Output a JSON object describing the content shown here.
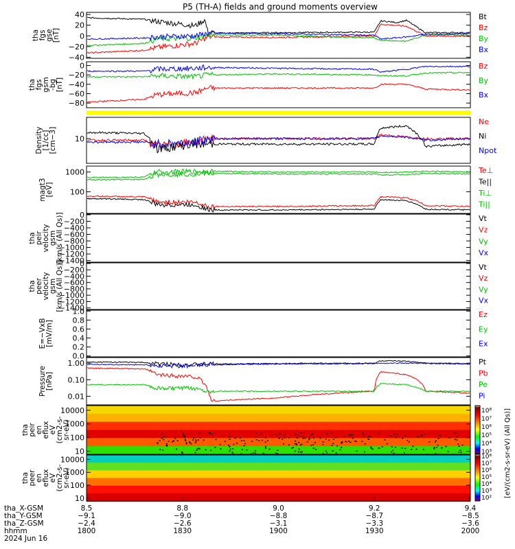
{
  "title": "P5 (TH-A) fields and ground moments overview",
  "panels": [
    {
      "id": "fgs_gse",
      "ylabel": [
        "tha",
        "fgs",
        "gse",
        "[nT]"
      ],
      "ticks": [
        "40",
        "20",
        "0",
        "−20",
        "−40"
      ],
      "tick_values": [
        40,
        20,
        0,
        -20,
        -40
      ],
      "ylim": [
        -42,
        44
      ],
      "legend": [
        {
          "text": "Bt",
          "color": "#000000"
        },
        {
          "text": "Bz",
          "color": "#ff0000"
        },
        {
          "text": "By",
          "color": "#00c000"
        },
        {
          "text": "Bx",
          "color": "#0000ff"
        }
      ]
    },
    {
      "id": "fgs_gsm",
      "ylabel": [
        "tha",
        "fgs",
        "gsm",
        "-bg",
        "[nT]"
      ],
      "ticks": [
        "0",
        "−20",
        "−40",
        "−60",
        "−80"
      ],
      "tick_values": [
        0,
        -20,
        -40,
        -60,
        -80
      ],
      "ylim": [
        -90,
        8
      ],
      "legend": [
        {
          "text": "Bz",
          "color": "#ff0000"
        },
        {
          "text": "By",
          "color": "#00c000"
        },
        {
          "text": "Bx",
          "color": "#0000ff"
        }
      ]
    },
    {
      "id": "density",
      "ylabel": [
        "Density",
        "[1/cc]",
        "[cm−3]"
      ],
      "ticks": [
        "10"
      ],
      "tick_values": [
        10
      ],
      "ylim": [
        2,
        40
      ],
      "log": true,
      "legend": [
        {
          "text": "Ne",
          "color": "#ff0000"
        },
        {
          "text": "Ni",
          "color": "#000000"
        },
        {
          "text": "Npot",
          "color": "#0000ff"
        }
      ]
    },
    {
      "id": "temp",
      "ylabel": [
        "magt3",
        "[eV]"
      ],
      "ticks": [
        "1000",
        "100"
      ],
      "tick_values": [
        1000,
        100
      ],
      "ylim": [
        8,
        2000
      ],
      "log": true,
      "legend": [
        {
          "text": "Te⊥",
          "color": "#ff0000"
        },
        {
          "text": "Te||",
          "color": "#000000"
        },
        {
          "text": "Ti⊥",
          "color": "#00c000"
        },
        {
          "text": "Ti||",
          "color": "#00c000"
        }
      ]
    },
    {
      "id": "peir_vel",
      "ylabel": [
        "tha",
        "peir",
        "velocity",
        "gsm",
        "[km/s (All Qs)]"
      ],
      "ticks": [
        "0",
        "−200",
        "−400",
        "−600",
        "−800",
        "−1000",
        "−1200",
        "−1400"
      ],
      "tick_values": [
        0,
        -200,
        -400,
        -600,
        -800,
        -1000,
        -1200,
        -1400
      ],
      "ylim": [
        -1450,
        20
      ],
      "legend": [
        {
          "text": "Vt",
          "color": "#000000"
        },
        {
          "text": "Vz",
          "color": "#ff0000"
        },
        {
          "text": "Vy",
          "color": "#00c000"
        },
        {
          "text": "Vx",
          "color": "#0000ff"
        }
      ]
    },
    {
      "id": "peer_vel",
      "ylabel": [
        "tha",
        "peer",
        "velocity",
        "gsm",
        "[km/s (All Qs)]"
      ],
      "ticks": [
        "0",
        "−200",
        "−400",
        "−600",
        "−800",
        "−1000",
        "−1200",
        "−1400"
      ],
      "tick_values": [
        0,
        -200,
        -400,
        -600,
        -800,
        -1000,
        -1200,
        -1400
      ],
      "ylim": [
        -1450,
        20
      ],
      "legend": [
        {
          "text": "Vt",
          "color": "#000000"
        },
        {
          "text": "Vz",
          "color": "#ff0000"
        },
        {
          "text": "Vy",
          "color": "#00c000"
        },
        {
          "text": "Vx",
          "color": "#0000ff"
        }
      ]
    },
    {
      "id": "efield",
      "ylabel": [
        "E=−VxB",
        "[mV/m]"
      ],
      "ticks": [
        "1.0",
        "0.8",
        "0.6",
        "0.4",
        "0.2",
        "0.0"
      ],
      "tick_values": [
        1.0,
        0.8,
        0.6,
        0.4,
        0.2,
        0.0
      ],
      "ylim": [
        -0.02,
        1.02
      ],
      "legend": [
        {
          "text": "Ez",
          "color": "#ff0000"
        },
        {
          "text": "Ey",
          "color": "#00c000"
        },
        {
          "text": "Ex",
          "color": "#0000ff"
        }
      ]
    },
    {
      "id": "pressure",
      "ylabel": [
        "Pressure",
        "[nPa]"
      ],
      "ticks": [
        "1.00",
        "0.10",
        "0.01"
      ],
      "tick_values": [
        1.0,
        0.1,
        0.01
      ],
      "ylim": [
        0.003,
        2.2
      ],
      "log": true,
      "legend": [
        {
          "text": "Pt",
          "color": "#000000"
        },
        {
          "text": "Pb",
          "color": "#ff0000"
        },
        {
          "text": "Pe",
          "color": "#00c000"
        },
        {
          "text": "Pi",
          "color": "#0000ff"
        }
      ]
    },
    {
      "id": "peir_spec",
      "ylabel": [
        "tha",
        "peir",
        "en",
        "eflux",
        "eV",
        "(cm2-s-",
        "sr-eV)"
      ],
      "ticks": [
        "10000",
        "1000",
        "100",
        "10"
      ],
      "tick_values": [
        10000,
        1000,
        100,
        10
      ],
      "ylim": [
        6,
        22000
      ],
      "log": true,
      "legend": []
    },
    {
      "id": "peer_spec",
      "ylabel": [
        "tha",
        "peer",
        "en",
        "eflux",
        "eV",
        "(cm2-s-",
        "sr-eV)"
      ],
      "ticks": [
        "10000",
        "1000",
        "100",
        "10"
      ],
      "tick_values": [
        10000,
        1000,
        100,
        10
      ],
      "ylim": [
        6,
        22000
      ],
      "log": true,
      "legend": []
    }
  ],
  "colorbar": {
    "label": "[eV/(cm2-s-sr-eV) (All Qs)]",
    "peir_ticks": [
      "10⁸",
      "10⁷",
      "10⁶",
      "10⁵",
      "10⁴",
      "10³"
    ],
    "peer_ticks": [
      "10⁸",
      "10⁷",
      "10⁶",
      "10⁵",
      "10⁴",
      "10³",
      "10²"
    ]
  },
  "xaxis": {
    "row_labels": [
      "tha_X-GSM",
      "tha_Y-GSM",
      "tha_Z-GSM",
      "hhmm",
      "2024 Jun 16"
    ],
    "columns": [
      {
        "x": "8.5",
        "y": "−9.1",
        "z": "−2.4",
        "hhmm": "1800"
      },
      {
        "x": "8.8",
        "y": "−9.0",
        "z": "−2.6",
        "hhmm": "1830"
      },
      {
        "x": "9.0",
        "y": "−8.8",
        "z": "−3.1",
        "hhmm": "1900"
      },
      {
        "x": "9.2",
        "y": "−8.7",
        "z": "−3.3",
        "hhmm": "1930"
      },
      {
        "x": "9.4",
        "y": "−8.5",
        "z": "−3.6",
        "hhmm": "2000"
      }
    ]
  },
  "chart_data": {
    "type": "line",
    "title": "P5 (TH-A) fields and ground moments overview",
    "x_unit": "hhmm",
    "x_range": [
      "1800",
      "2000"
    ],
    "series": [
      {
        "panel": "fgs_gse",
        "name": "Bt",
        "x": [
          "1800",
          "1818",
          "1822",
          "1834",
          "1837",
          "1838",
          "1900",
          "1930",
          "1932",
          "1937",
          "1940",
          "1946",
          "2000"
        ],
        "values": [
          34,
          31,
          27,
          19,
          30,
          5,
          6,
          7,
          28,
          25,
          29,
          6,
          6
        ]
      },
      {
        "panel": "fgs_gse",
        "name": "Bz",
        "x": [
          "1800",
          "1818",
          "1822",
          "1834",
          "1838",
          "1900",
          "1930",
          "1932",
          "1940",
          "1946",
          "2000"
        ],
        "values": [
          -32,
          -27,
          -22,
          -14,
          -2,
          -3,
          0,
          22,
          18,
          0,
          -1
        ]
      },
      {
        "panel": "fgs_gse",
        "name": "By",
        "x": [
          "1800",
          "1818",
          "1822",
          "1834",
          "1838",
          "1900",
          "1930",
          "1932",
          "1940",
          "1946",
          "2000"
        ],
        "values": [
          -18,
          -14,
          -6,
          -4,
          2,
          1,
          -4,
          -8,
          -10,
          2,
          1
        ]
      },
      {
        "panel": "fgs_gse",
        "name": "Bx",
        "x": [
          "1800",
          "1818",
          "1822",
          "1834",
          "1838",
          "1900",
          "1930",
          "1932",
          "1940",
          "1946",
          "2000"
        ],
        "values": [
          -6,
          -4,
          -2,
          0,
          5,
          4,
          1,
          -6,
          -2,
          3,
          4
        ]
      },
      {
        "panel": "fgs_gsm",
        "name": "Bz",
        "x": [
          "1800",
          "1818",
          "1822",
          "1834",
          "1838",
          "1900",
          "1930",
          "1932",
          "1940",
          "1946",
          "2000"
        ],
        "values": [
          -78,
          -72,
          -62,
          -58,
          -48,
          -48,
          -48,
          -40,
          -40,
          -50,
          -52
        ]
      },
      {
        "panel": "fgs_gsm",
        "name": "By",
        "x": [
          "1800",
          "1818",
          "1822",
          "1834",
          "1838",
          "1900",
          "1930",
          "1932",
          "1940",
          "1946",
          "2000"
        ],
        "values": [
          -24,
          -24,
          -22,
          -24,
          -20,
          -18,
          -20,
          -22,
          -22,
          -16,
          -15
        ]
      },
      {
        "panel": "fgs_gsm",
        "name": "Bx",
        "x": [
          "1800",
          "1818",
          "1822",
          "1834",
          "1838",
          "1900",
          "1930",
          "1932",
          "1940",
          "1946",
          "2000"
        ],
        "values": [
          -12,
          -12,
          -8,
          -6,
          -4,
          -6,
          -8,
          -14,
          -8,
          -2,
          -2
        ]
      },
      {
        "panel": "density",
        "name": "Ne",
        "x": [
          "1800",
          "1818",
          "1822",
          "1834",
          "1838",
          "1900",
          "1930",
          "1932",
          "1940",
          "1946",
          "2000"
        ],
        "values": [
          9,
          9,
          6,
          8,
          10,
          10,
          10,
          13,
          11,
          10,
          10
        ]
      },
      {
        "panel": "density",
        "name": "Ni",
        "x": [
          "1800",
          "1818",
          "1822",
          "1834",
          "1838",
          "1900",
          "1930",
          "1932",
          "1940",
          "1946",
          "2000"
        ],
        "values": [
          15,
          14,
          5,
          7,
          7,
          7,
          7,
          20,
          23,
          6,
          7
        ]
      },
      {
        "panel": "density",
        "name": "Npot",
        "x": [
          "1800",
          "1818",
          "1822",
          "1834",
          "1838",
          "1900",
          "1930",
          "1932",
          "1940",
          "1946",
          "2000"
        ],
        "values": [
          8,
          8,
          7,
          8,
          10,
          10,
          10,
          12,
          11,
          9,
          10
        ]
      },
      {
        "panel": "temp",
        "name": "Te⊥",
        "x": [
          "1800",
          "1818",
          "1822",
          "1834",
          "1838",
          "1900",
          "1930",
          "1932",
          "1940",
          "1946",
          "2000"
        ],
        "values": [
          60,
          55,
          30,
          30,
          18,
          18,
          20,
          55,
          50,
          20,
          18
        ]
      },
      {
        "panel": "temp",
        "name": "Te||",
        "x": [
          "1800",
          "1818",
          "1822",
          "1834",
          "1838",
          "1900",
          "1930",
          "1932",
          "1940",
          "1946",
          "2000"
        ],
        "values": [
          45,
          40,
          22,
          22,
          12,
          12,
          13,
          40,
          35,
          13,
          12
        ]
      },
      {
        "panel": "temp",
        "name": "Ti⊥",
        "x": [
          "1800",
          "1818",
          "1822",
          "1834",
          "1838",
          "1900",
          "1930",
          "1932",
          "1940",
          "1946",
          "2000"
        ],
        "values": [
          520,
          550,
          1000,
          1050,
          1100,
          1000,
          1000,
          950,
          1000,
          1100,
          1000
        ]
      },
      {
        "panel": "temp",
        "name": "Ti||",
        "x": [
          "1800",
          "1818",
          "1822",
          "1834",
          "1838",
          "1900",
          "1930",
          "1932",
          "1940",
          "1946",
          "2000"
        ],
        "values": [
          400,
          420,
          750,
          800,
          850,
          800,
          800,
          700,
          750,
          850,
          800
        ]
      },
      {
        "panel": "pressure",
        "name": "Pt",
        "x": [
          "1800",
          "1818",
          "1822",
          "1834",
          "1838",
          "1900",
          "1930",
          "1932",
          "1940",
          "1946",
          "2000"
        ],
        "values": [
          1.2,
          1.1,
          0.9,
          0.8,
          0.9,
          0.95,
          1.0,
          1.4,
          1.3,
          1.0,
          0.95
        ]
      },
      {
        "panel": "pressure",
        "name": "Pb",
        "x": [
          "1800",
          "1818",
          "1822",
          "1834",
          "1838",
          "1839",
          "1900",
          "1930",
          "1932",
          "1940",
          "1946",
          "2000"
        ],
        "values": [
          0.5,
          0.45,
          0.2,
          0.15,
          0.02,
          0.005,
          0.008,
          0.02,
          0.3,
          0.2,
          0.02,
          0.015
        ]
      },
      {
        "panel": "pressure",
        "name": "Pe",
        "x": [
          "1800",
          "1818",
          "1822",
          "1834",
          "1838",
          "1900",
          "1930",
          "1932",
          "1940",
          "1946",
          "2000"
        ],
        "values": [
          0.05,
          0.05,
          0.03,
          0.03,
          0.02,
          0.02,
          0.02,
          0.06,
          0.05,
          0.02,
          0.02
        ]
      },
      {
        "panel": "pressure",
        "name": "Pi",
        "x": [
          "1800",
          "1818",
          "1822",
          "1834",
          "1838",
          "1900",
          "1930",
          "1932",
          "1940",
          "1946",
          "2000"
        ],
        "values": [
          0.85,
          0.8,
          0.7,
          0.7,
          0.8,
          0.9,
          0.95,
          1.0,
          1.0,
          0.95,
          0.9
        ]
      }
    ]
  }
}
